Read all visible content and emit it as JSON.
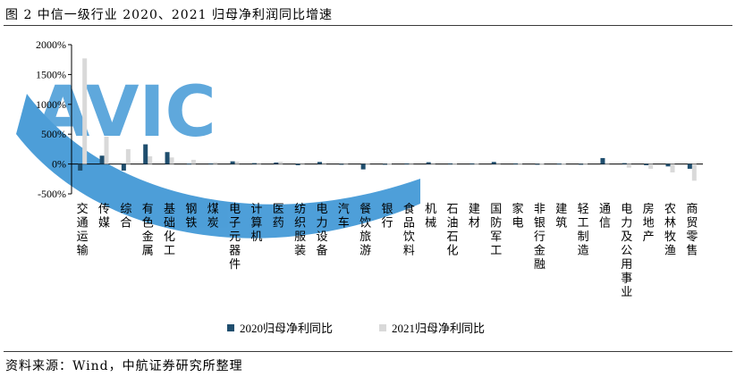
{
  "figure_title": "图 2 中信一级行业 2020、2021 归母净利润同比增速",
  "source_note": "资料来源：Wind，中航证券研究所整理",
  "watermark_text": "AVIC",
  "colors": {
    "series_2020": "#1f4e6e",
    "series_2021": "#d9d9d9",
    "watermark": "#2f8ed2"
  },
  "chart_data": {
    "type": "bar",
    "title": "",
    "xlabel": "",
    "ylabel": "",
    "ylim": [
      -500,
      2000
    ],
    "yticks": [
      -500,
      0,
      500,
      1000,
      1500,
      2000
    ],
    "ytick_labels": [
      "-500%",
      "0%",
      "500%",
      "1000%",
      "1500%",
      "2000%"
    ],
    "legend_position": "bottom",
    "grid": false,
    "categories": [
      "交通运输",
      "传媒",
      "综合",
      "有色金属",
      "基础化工",
      "钢铁",
      "煤炭",
      "电子元器件",
      "计算机",
      "医药",
      "纺织服装",
      "电力设备",
      "汽车",
      "餐饮旅游",
      "银行",
      "食品饮料",
      "机械",
      "石油石化",
      "建材",
      "国防军工",
      "家电",
      "非银行金融",
      "建筑",
      "轻工制造",
      "通信",
      "电力及公用事业",
      "房地产",
      "农林牧渔",
      "商贸零售"
    ],
    "series": [
      {
        "name": "2020归母净利同比",
        "values": [
          -110,
          140,
          -110,
          330,
          200,
          5,
          10,
          45,
          15,
          25,
          -20,
          35,
          -10,
          -90,
          0,
          10,
          30,
          10,
          10,
          35,
          10,
          0,
          5,
          0,
          100,
          15,
          -20,
          -40,
          -80
        ]
      },
      {
        "name": "2021归母净利同比",
        "values": [
          1770,
          460,
          250,
          130,
          110,
          70,
          30,
          40,
          20,
          40,
          20,
          20,
          15,
          10,
          5,
          15,
          15,
          10,
          10,
          20,
          10,
          5,
          5,
          10,
          15,
          -60,
          -80,
          -140,
          -280
        ]
      }
    ]
  }
}
